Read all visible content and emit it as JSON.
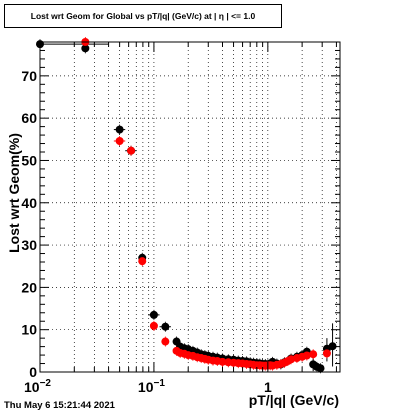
{
  "chart_data": {
    "type": "scatter",
    "title": "Lost wrt Geom for Global vs pT/|q| (GeV/c) at | η | <= 1.0",
    "xlabel": "pT/|q| (GeV/c)",
    "ylabel": "Lost wrt Geom(%)",
    "x_scale": "log",
    "xlim": [
      0.01,
      4.3
    ],
    "ylim": [
      0,
      78
    ],
    "grid": true,
    "x_tick_labels": [
      {
        "value": 0.01,
        "base": "10",
        "exp": "−2"
      },
      {
        "value": 0.1,
        "base": "10",
        "exp": "−1"
      },
      {
        "value": 1,
        "base": "1",
        "exp": ""
      }
    ],
    "y_tick_labels": [
      "0",
      "10",
      "20",
      "30",
      "40",
      "50",
      "60",
      "70"
    ],
    "series": [
      {
        "color": "#000000",
        "points": [
          [
            0.01,
            77.5
          ],
          [
            0.025,
            76.5
          ],
          [
            0.05,
            57.3
          ],
          [
            0.063,
            52.3
          ],
          [
            0.079,
            27.0
          ],
          [
            0.1,
            13.5
          ],
          [
            0.126,
            10.7
          ],
          [
            0.158,
            7.2
          ],
          [
            0.17,
            6.0
          ],
          [
            0.185,
            5.6
          ],
          [
            0.2,
            5.4
          ],
          [
            0.22,
            5.0
          ],
          [
            0.24,
            4.6
          ],
          [
            0.26,
            4.2
          ],
          [
            0.28,
            4.0
          ],
          [
            0.3,
            3.8
          ],
          [
            0.33,
            3.6
          ],
          [
            0.36,
            3.4
          ],
          [
            0.4,
            3.2
          ],
          [
            0.45,
            3.0
          ],
          [
            0.5,
            2.9
          ],
          [
            0.55,
            2.7
          ],
          [
            0.6,
            2.6
          ],
          [
            0.65,
            2.5
          ],
          [
            0.7,
            2.3
          ],
          [
            0.75,
            2.2
          ],
          [
            0.8,
            2.1
          ],
          [
            0.85,
            2.0
          ],
          [
            0.9,
            1.9
          ],
          [
            0.95,
            1.9
          ],
          [
            1.0,
            1.8
          ],
          [
            1.05,
            2.0
          ],
          [
            1.1,
            2.4
          ],
          [
            1.2,
            2.0
          ],
          [
            1.3,
            1.8
          ],
          [
            1.4,
            2.3
          ],
          [
            1.6,
            3.2
          ],
          [
            1.8,
            3.6
          ],
          [
            2.0,
            4.0
          ],
          [
            2.2,
            4.8
          ],
          [
            2.5,
            1.8
          ],
          [
            2.7,
            1.2
          ],
          [
            2.9,
            0.9
          ],
          [
            3.3,
            5.5
          ],
          [
            3.7,
            6.1
          ]
        ],
        "x_error_points": [
          [
            0.01,
            0.04
          ],
          [
            0.0445,
            0.056
          ],
          [
            0.056,
            0.07
          ],
          [
            0.089,
            0.112
          ],
          [
            0.112,
            0.141
          ]
        ],
        "y_error_points": [
          [
            3.7,
            1.3,
            11.5
          ],
          [
            3.3,
            2.5,
            8.0
          ],
          [
            2.5,
            0.2,
            3.5
          ]
        ]
      },
      {
        "color": "#ff0000",
        "points": [
          [
            0.025,
            78.0
          ],
          [
            0.05,
            54.6
          ],
          [
            0.063,
            52.3
          ],
          [
            0.079,
            26.2
          ],
          [
            0.1,
            10.9
          ],
          [
            0.126,
            7.2
          ],
          [
            0.158,
            5.0
          ],
          [
            0.17,
            4.5
          ],
          [
            0.185,
            4.3
          ],
          [
            0.2,
            4.0
          ],
          [
            0.22,
            3.8
          ],
          [
            0.24,
            3.5
          ],
          [
            0.26,
            3.3
          ],
          [
            0.28,
            3.1
          ],
          [
            0.3,
            2.9
          ],
          [
            0.33,
            2.7
          ],
          [
            0.36,
            2.6
          ],
          [
            0.4,
            2.4
          ],
          [
            0.45,
            2.3
          ],
          [
            0.5,
            2.2
          ],
          [
            0.55,
            2.1
          ],
          [
            0.6,
            2.0
          ],
          [
            0.65,
            1.9
          ],
          [
            0.7,
            1.8
          ],
          [
            0.75,
            1.7
          ],
          [
            0.8,
            1.6
          ],
          [
            0.85,
            1.6
          ],
          [
            0.9,
            1.5
          ],
          [
            0.95,
            1.5
          ],
          [
            1.0,
            1.5
          ],
          [
            1.05,
            1.6
          ],
          [
            1.1,
            1.5
          ],
          [
            1.2,
            1.7
          ],
          [
            1.3,
            1.9
          ],
          [
            1.4,
            2.2
          ],
          [
            1.5,
            2.6
          ],
          [
            1.6,
            3.0
          ],
          [
            1.8,
            3.3
          ],
          [
            2.0,
            3.6
          ],
          [
            2.2,
            3.9
          ],
          [
            2.5,
            4.2
          ],
          [
            3.3,
            4.4
          ]
        ],
        "x_error_points": [
          [
            0.01,
            0.04
          ],
          [
            0.0445,
            0.056
          ]
        ]
      }
    ],
    "date_stamp": "Thu May  6 15:21:44 2021"
  }
}
